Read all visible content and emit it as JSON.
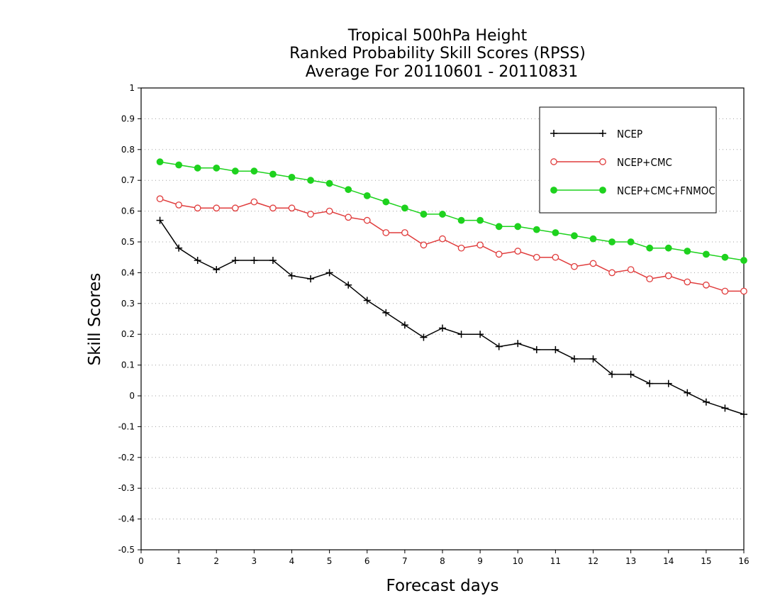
{
  "chart_data": {
    "type": "line",
    "title_lines": [
      "Tropical 500hPa Height",
      "Ranked Probability Skill Scores (RPSS)",
      "Average For 20110601 - 20110831"
    ],
    "xlabel": "Forecast days",
    "ylabel": "Skill Scores",
    "xlim": [
      0,
      16
    ],
    "ylim": [
      -0.5,
      1
    ],
    "xticks": [
      "0",
      "1",
      "2",
      "3",
      "4",
      "5",
      "6",
      "7",
      "8",
      "9",
      "10",
      "11",
      "12",
      "13",
      "14",
      "15",
      "16"
    ],
    "yticks": [
      "-0.5",
      "-0.4",
      "-0.3",
      "-0.2",
      "-0.1",
      "0",
      "0.1",
      "0.2",
      "0.3",
      "0.4",
      "0.5",
      "0.6",
      "0.7",
      "0.8",
      "0.9",
      "1"
    ],
    "grid": "horizontal dotted",
    "legend_position": "top-right",
    "x": [
      0.5,
      1,
      1.5,
      2,
      2.5,
      3,
      3.5,
      4,
      4.5,
      5,
      5.5,
      6,
      6.5,
      7,
      7.5,
      8,
      8.5,
      9,
      9.5,
      10,
      10.5,
      11,
      11.5,
      12,
      12.5,
      13,
      13.5,
      14,
      14.5,
      15,
      15.5,
      16
    ],
    "series": [
      {
        "name": "NCEP",
        "color": "#000000",
        "marker": "plus",
        "values": [
          0.57,
          0.48,
          0.44,
          0.41,
          0.44,
          0.44,
          0.44,
          0.39,
          0.38,
          0.4,
          0.36,
          0.31,
          0.27,
          0.23,
          0.19,
          0.22,
          0.2,
          0.2,
          0.16,
          0.17,
          0.15,
          0.15,
          0.12,
          0.12,
          0.07,
          0.07,
          0.04,
          0.04,
          0.01,
          -0.02,
          -0.04,
          -0.06
        ]
      },
      {
        "name": "NCEP+CMC",
        "color": "#e03c3c",
        "marker": "open-circle",
        "values": [
          0.64,
          0.62,
          0.61,
          0.61,
          0.61,
          0.63,
          0.61,
          0.61,
          0.59,
          0.6,
          0.58,
          0.57,
          0.53,
          0.53,
          0.49,
          0.51,
          0.48,
          0.49,
          0.46,
          0.47,
          0.45,
          0.45,
          0.42,
          0.43,
          0.4,
          0.41,
          0.38,
          0.39,
          0.37,
          0.36,
          0.34,
          0.34
        ]
      },
      {
        "name": "NCEP+CMC+FNMOC",
        "color": "#1ed21e",
        "marker": "filled-circle",
        "values": [
          0.76,
          0.75,
          0.74,
          0.74,
          0.73,
          0.73,
          0.72,
          0.71,
          0.7,
          0.69,
          0.67,
          0.65,
          0.63,
          0.61,
          0.59,
          0.59,
          0.57,
          0.57,
          0.55,
          0.55,
          0.54,
          0.53,
          0.52,
          0.51,
          0.5,
          0.5,
          0.48,
          0.48,
          0.47,
          0.46,
          0.45,
          0.44
        ]
      }
    ]
  }
}
